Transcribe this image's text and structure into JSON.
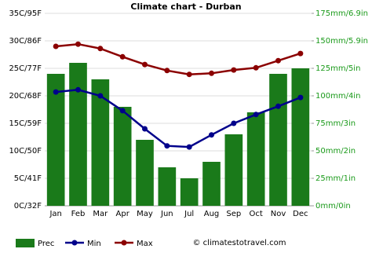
{
  "chart_data": {
    "type": "bar",
    "title": "Climate chart - Durban",
    "categories": [
      "Jan",
      "Feb",
      "Mar",
      "Apr",
      "May",
      "Jun",
      "Jul",
      "Aug",
      "Sep",
      "Oct",
      "Nov",
      "Dec"
    ],
    "series": [
      {
        "name": "Prec",
        "type": "bar",
        "axis": "y2",
        "color": "#1a7a1a",
        "values": [
          120,
          130,
          115,
          90,
          60,
          35,
          25,
          40,
          65,
          85,
          120,
          125
        ]
      },
      {
        "name": "Min",
        "type": "line",
        "color": "#00008b",
        "values": [
          20.7,
          21.1,
          20.0,
          17.3,
          14.0,
          10.9,
          10.7,
          12.9,
          15.0,
          16.6,
          18.1,
          19.7
        ]
      },
      {
        "name": "Max",
        "type": "line",
        "color": "#8b0000",
        "values": [
          29.0,
          29.4,
          28.6,
          27.1,
          25.7,
          24.6,
          23.9,
          24.1,
          24.7,
          25.1,
          26.4,
          27.7
        ]
      }
    ],
    "ylim": [
      0,
      35
    ],
    "yticks": [
      {
        "value": 0,
        "label": "0C/32F"
      },
      {
        "value": 5,
        "label": "5C/41F"
      },
      {
        "value": 10,
        "label": "10C/50F"
      },
      {
        "value": 15,
        "label": "15C/59F"
      },
      {
        "value": 20,
        "label": "20C/68F"
      },
      {
        "value": 25,
        "label": "25C/77F"
      },
      {
        "value": 30,
        "label": "30C/86F"
      },
      {
        "value": 35,
        "label": "35C/95F"
      }
    ],
    "y2lim": [
      0,
      175
    ],
    "y2ticks": [
      {
        "value": 0,
        "label": "0mm/0in"
      },
      {
        "value": 25,
        "label": "25mm/1in"
      },
      {
        "value": 50,
        "label": "50mm/2in"
      },
      {
        "value": 75,
        "label": "75mm/3in"
      },
      {
        "value": 100,
        "label": "100mm/4in"
      },
      {
        "value": 125,
        "label": "125mm/5in"
      },
      {
        "value": 150,
        "label": "150mm/5.9in"
      },
      {
        "value": 175,
        "label": "175mm/6.9in"
      }
    ],
    "grid": true,
    "legend": "bottom-left",
    "watermark": "© climatestotravel.com"
  }
}
